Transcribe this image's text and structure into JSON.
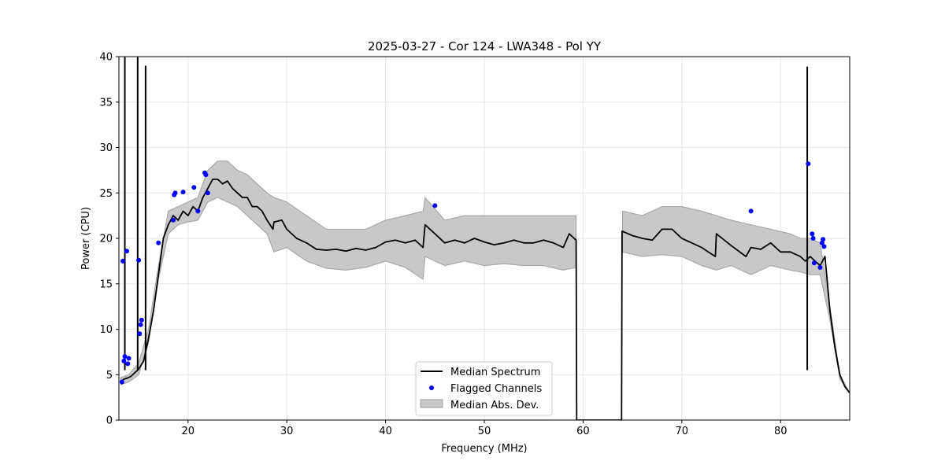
{
  "chart_data": {
    "type": "line",
    "title": "2025-03-27 - Cor 124 - LWA348 - Pol YY",
    "xlabel": "Frequency (MHz)",
    "ylabel": "Power (CPU)",
    "xlim": [
      13.0,
      87.0
    ],
    "ylim": [
      0,
      40
    ],
    "xticks": [
      20,
      30,
      40,
      50,
      60,
      70,
      80
    ],
    "yticks": [
      0,
      5,
      10,
      15,
      20,
      25,
      30,
      35,
      40
    ],
    "grid": true,
    "legend_position": "bottom-center",
    "colors": {
      "median": "#000000",
      "flagged": "#0000ff",
      "mad_fill": "#c8c8c8",
      "mad_edge": "#a0a0a0",
      "grid": "#e6e6e6"
    },
    "series": [
      {
        "name": "Median Spectrum",
        "kind": "line",
        "x": [
          13.2,
          13.5,
          13.8,
          14.2,
          14.6,
          15.0,
          15.5,
          16.0,
          16.5,
          17.0,
          17.5,
          18.0,
          18.5,
          19.0,
          19.5,
          20.0,
          20.5,
          21.0,
          21.5,
          22.0,
          22.5,
          23.0,
          23.5,
          24.0,
          24.5,
          25.0,
          25.5,
          26.0,
          26.5,
          27.0,
          27.5,
          28.0,
          28.6,
          28.7,
          29.5,
          30.0,
          31.0,
          32.0,
          33.0,
          34.0,
          35.0,
          36.0,
          37.0,
          38.0,
          39.0,
          40.0,
          41.0,
          42.0,
          43.0,
          43.8,
          44.0,
          45.0,
          46.0,
          47.0,
          48.0,
          49.0,
          50.0,
          51.0,
          52.0,
          53.0,
          54.0,
          55.0,
          56.0,
          57.0,
          58.0,
          58.6,
          59.3,
          59.35,
          63.9,
          63.95,
          65.0,
          66.0,
          67.0,
          68.0,
          69.0,
          70.0,
          71.0,
          72.0,
          73.4,
          73.5,
          75.0,
          76.5,
          77.0,
          78.0,
          79.0,
          80.0,
          81.0,
          82.0,
          82.5,
          83.0,
          83.5,
          84.0,
          84.5,
          85.0,
          85.5,
          86.0,
          86.5,
          87.0
        ],
        "values": [
          4.2,
          4.5,
          4.6,
          4.8,
          5.2,
          5.6,
          6.5,
          9.0,
          12.0,
          16.0,
          20.0,
          21.5,
          22.5,
          22.0,
          23.0,
          22.5,
          23.5,
          23.0,
          24.5,
          25.5,
          26.5,
          26.5,
          26.0,
          26.3,
          25.5,
          25.0,
          24.5,
          24.5,
          23.5,
          23.5,
          23.0,
          22.0,
          21.0,
          21.8,
          22.0,
          21.0,
          20.0,
          19.5,
          18.8,
          18.7,
          18.8,
          18.6,
          18.9,
          18.7,
          19.0,
          19.6,
          19.8,
          19.5,
          19.8,
          19.0,
          21.5,
          20.5,
          19.5,
          19.8,
          19.5,
          20.0,
          19.6,
          19.3,
          19.5,
          19.8,
          19.5,
          19.5,
          19.8,
          19.5,
          19.0,
          20.5,
          19.8,
          0.0,
          0.0,
          20.8,
          20.3,
          20.0,
          19.8,
          21.0,
          21.0,
          20.0,
          19.5,
          19.0,
          18.0,
          20.5,
          19.2,
          18.0,
          19.0,
          18.8,
          19.5,
          18.5,
          18.5,
          18.0,
          17.5,
          18.0,
          17.5,
          17.0,
          18.0,
          12.0,
          8.0,
          5.0,
          3.7,
          3.0
        ]
      },
      {
        "name": "Flagged Channels",
        "kind": "scatter",
        "x": [
          13.3,
          13.4,
          13.5,
          13.6,
          13.8,
          13.9,
          14.0,
          15.0,
          15.1,
          15.2,
          15.3,
          17.0,
          18.5,
          18.6,
          18.7,
          19.5,
          20.6,
          21.0,
          21.7,
          21.8,
          22.0,
          45.0,
          77.0,
          82.8,
          83.2,
          83.3,
          83.4,
          84.0,
          84.2,
          84.3,
          84.4
        ],
        "values": [
          4.2,
          17.5,
          6.5,
          7.0,
          18.6,
          6.2,
          6.8,
          17.6,
          9.5,
          10.5,
          11.0,
          19.5,
          22.0,
          24.8,
          25.0,
          25.1,
          25.6,
          23.0,
          27.2,
          27.0,
          25.0,
          23.6,
          23.0,
          28.2,
          20.5,
          20.0,
          17.3,
          16.8,
          19.5,
          19.9,
          19.1
        ]
      },
      {
        "name": "Median Abs. Dev.",
        "kind": "band",
        "x": [
          13.2,
          14.0,
          15.0,
          16.0,
          17.0,
          18.0,
          19.0,
          20.0,
          21.0,
          22.0,
          23.0,
          24.0,
          25.0,
          26.0,
          27.0,
          28.0,
          28.7,
          30.0,
          32.0,
          34.0,
          36.0,
          38.0,
          40.0,
          42.0,
          43.8,
          44.0,
          46.0,
          48.0,
          50.0,
          52.0,
          54.0,
          56.0,
          58.0,
          59.3,
          64.0,
          66.0,
          68.0,
          70.0,
          72.0,
          73.5,
          75.0,
          77.0,
          79.0,
          81.0,
          82.0,
          83.0,
          84.0,
          85.0,
          86.0,
          87.0
        ],
        "lower": [
          3.9,
          4.2,
          5.0,
          8.5,
          15.5,
          20.5,
          21.5,
          21.8,
          22.0,
          24.0,
          24.5,
          24.0,
          23.5,
          22.5,
          21.5,
          20.5,
          18.5,
          19.0,
          17.5,
          16.7,
          16.5,
          16.8,
          17.5,
          16.8,
          15.5,
          18.0,
          17.0,
          17.5,
          17.0,
          17.2,
          17.0,
          17.0,
          16.5,
          16.8,
          18.5,
          18.0,
          18.2,
          18.0,
          17.0,
          16.5,
          17.0,
          16.0,
          17.0,
          16.5,
          16.3,
          16.0,
          16.0,
          11.0,
          4.5,
          3.0
        ],
        "upper": [
          4.7,
          5.0,
          6.3,
          10.0,
          17.0,
          23.0,
          23.5,
          24.0,
          24.5,
          27.5,
          28.5,
          28.5,
          27.5,
          27.0,
          26.0,
          25.0,
          24.5,
          24.0,
          22.5,
          21.0,
          21.0,
          21.0,
          22.0,
          22.5,
          23.0,
          24.5,
          22.0,
          22.5,
          22.5,
          22.5,
          22.5,
          22.5,
          22.5,
          22.5,
          23.0,
          22.5,
          23.5,
          23.5,
          23.0,
          22.5,
          22.0,
          21.5,
          21.0,
          20.5,
          20.0,
          20.0,
          19.5,
          12.5,
          5.0,
          3.0
        ]
      }
    ],
    "spikes": [
      {
        "x": 13.6,
        "y": 40
      },
      {
        "x": 14.9,
        "y": 40
      },
      {
        "x": 15.7,
        "y": 39
      },
      {
        "x": 82.7,
        "y": 38.9
      }
    ]
  }
}
